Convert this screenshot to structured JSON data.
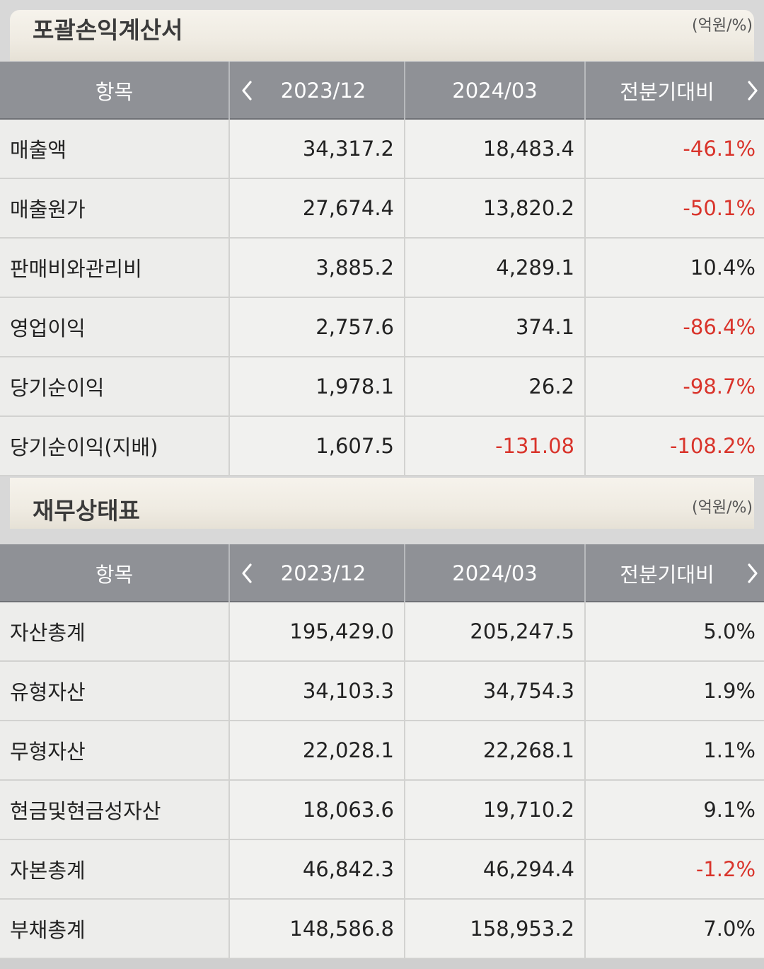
{
  "income_statement": {
    "title": "포괄손익계산서",
    "unit": "(억원/%)",
    "columns": {
      "item": "항목",
      "prev": "2023/12",
      "curr": "2024/03",
      "change": "전분기대비"
    },
    "rows": [
      {
        "label": "매출액",
        "prev": "34,317.2",
        "curr": "18,483.4",
        "change": "-46.1%"
      },
      {
        "label": "매출원가",
        "prev": "27,674.4",
        "curr": "13,820.2",
        "change": "-50.1%"
      },
      {
        "label": "판매비와관리비",
        "prev": "3,885.2",
        "curr": "4,289.1",
        "change": "10.4%"
      },
      {
        "label": "영업이익",
        "prev": "2,757.6",
        "curr": "374.1",
        "change": "-86.4%"
      },
      {
        "label": "당기순이익",
        "prev": "1,978.1",
        "curr": "26.2",
        "change": "-98.7%"
      },
      {
        "label": "당기순이익(지배)",
        "prev": "1,607.5",
        "curr": "-131.08",
        "change": "-108.2%"
      }
    ]
  },
  "balance_sheet": {
    "title": "재무상태표",
    "unit": "(억원/%)",
    "columns": {
      "item": "항목",
      "prev": "2023/12",
      "curr": "2024/03",
      "change": "전분기대비"
    },
    "rows": [
      {
        "label": "자산총계",
        "prev": "195,429.0",
        "curr": "205,247.5",
        "change": "5.0%"
      },
      {
        "label": "유형자산",
        "prev": "34,103.3",
        "curr": "34,754.3",
        "change": "1.9%"
      },
      {
        "label": "무형자산",
        "prev": "22,028.1",
        "curr": "22,268.1",
        "change": "1.1%"
      },
      {
        "label": "현금및현금성자산",
        "prev": "18,063.6",
        "curr": "19,710.2",
        "change": "9.1%"
      },
      {
        "label": "자본총계",
        "prev": "46,842.3",
        "curr": "46,294.4",
        "change": "-1.2%"
      },
      {
        "label": "부채총계",
        "prev": "148,586.8",
        "curr": "158,953.2",
        "change": "7.0%"
      }
    ]
  },
  "icons": {
    "prev": "chevron-left-icon",
    "next": "chevron-right-icon"
  },
  "colors": {
    "negative": "#d9342b",
    "header_bg": "#8f9196"
  }
}
